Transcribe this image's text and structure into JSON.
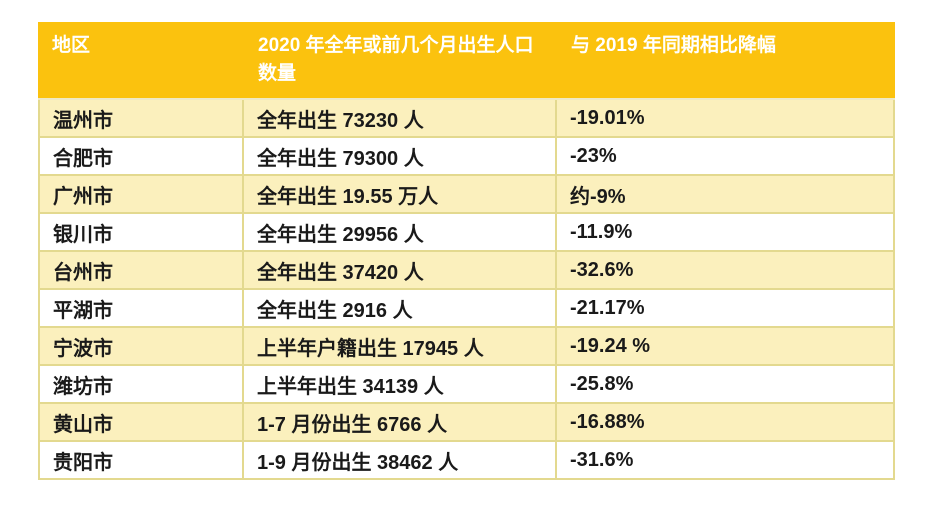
{
  "colors": {
    "header_bg": "#FBC20E",
    "header_text": "#FFFFFF",
    "row_alt_bg": "#FBF0BD",
    "row_bg": "#FFFFFF",
    "border": "#E3D98F",
    "header_sep": "#EFE9C5",
    "text": "#1A1A1A"
  },
  "chart_data": {
    "type": "table",
    "columns": [
      "地区",
      "2020 年全年或前几个月出生人口数量",
      "与 2019 年同期相比降幅"
    ],
    "rows": [
      [
        "温州市",
        "全年出生 73230 人",
        "-19.01%"
      ],
      [
        "合肥市",
        "全年出生 79300 人",
        "-23%"
      ],
      [
        "广州市",
        "全年出生 19.55 万人",
        "约-9%"
      ],
      [
        "银川市",
        "全年出生 29956 人",
        "-11.9%"
      ],
      [
        "台州市",
        "全年出生 37420 人",
        "-32.6%"
      ],
      [
        "平湖市",
        "全年出生 2916 人",
        "-21.17%"
      ],
      [
        "宁波市",
        "上半年户籍出生 17945 人",
        "-19.24 %"
      ],
      [
        "潍坊市",
        "上半年出生 34139 人",
        "-25.8%"
      ],
      [
        "黄山市",
        "1-7 月份出生 6766 人",
        "-16.88%"
      ],
      [
        "贵阳市",
        "1-9 月份出生 38462 人",
        "-31.6%"
      ]
    ]
  }
}
